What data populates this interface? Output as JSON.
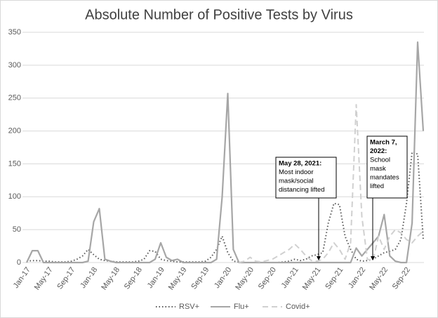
{
  "chart_data": {
    "type": "line",
    "title": "Absolute Number of Positive Tests by Virus",
    "categories": [
      "Jan-17",
      null,
      null,
      null,
      "May-17",
      null,
      null,
      null,
      "Sep-17",
      null,
      null,
      null,
      "Jan-18",
      null,
      null,
      null,
      "May-18",
      null,
      null,
      null,
      "Sep-18",
      null,
      null,
      null,
      "Jan-19",
      null,
      null,
      null,
      "May-19",
      null,
      null,
      null,
      "Sep-19",
      null,
      null,
      null,
      "Jan-20",
      null,
      null,
      null,
      "May-20",
      null,
      null,
      null,
      "Sep-20",
      null,
      null,
      null,
      "Jan-21",
      null,
      null,
      null,
      "May-21",
      null,
      null,
      null,
      "Sep-21",
      null,
      null,
      null,
      "Jan-22",
      null,
      null,
      null,
      "May-22",
      null,
      null,
      null,
      "Sep-22",
      null,
      null,
      null
    ],
    "series": [
      {
        "name": "RSV+",
        "color": "#595959",
        "dash": "dotted",
        "values": [
          2,
          3,
          3,
          2,
          2,
          1,
          1,
          1,
          2,
          5,
          10,
          20,
          12,
          5,
          3,
          2,
          1,
          1,
          1,
          1,
          2,
          5,
          18,
          17,
          5,
          3,
          2,
          1,
          1,
          1,
          1,
          1,
          2,
          8,
          20,
          40,
          15,
          2,
          1,
          0,
          0,
          0,
          0,
          0,
          0,
          0,
          1,
          2,
          5,
          3,
          5,
          10,
          12,
          15,
          60,
          90,
          88,
          40,
          20,
          5,
          2,
          3,
          5,
          10,
          15,
          17,
          20,
          35,
          90,
          168,
          165,
          35
        ]
      },
      {
        "name": "Flu+",
        "color": "#a6a6a6",
        "dash": "solid",
        "values": [
          0,
          18,
          18,
          0,
          0,
          0,
          0,
          0,
          0,
          0,
          0,
          2,
          62,
          82,
          5,
          2,
          0,
          0,
          0,
          0,
          0,
          0,
          0,
          5,
          30,
          8,
          3,
          5,
          0,
          0,
          0,
          0,
          0,
          0,
          5,
          100,
          257,
          20,
          0,
          0,
          0,
          0,
          0,
          0,
          0,
          0,
          0,
          0,
          0,
          0,
          0,
          0,
          0,
          0,
          0,
          0,
          0,
          0,
          0,
          22,
          10,
          20,
          30,
          40,
          73,
          10,
          2,
          0,
          0,
          60,
          335,
          200
        ]
      },
      {
        "name": "Covid+",
        "color": "#d0d0d0",
        "dash": "dashed",
        "values": [
          null,
          null,
          null,
          null,
          null,
          null,
          null,
          null,
          null,
          null,
          null,
          null,
          null,
          null,
          null,
          null,
          null,
          null,
          null,
          null,
          null,
          null,
          null,
          null,
          null,
          null,
          null,
          null,
          null,
          null,
          null,
          null,
          null,
          null,
          null,
          null,
          null,
          null,
          0,
          2,
          8,
          2,
          1,
          3,
          5,
          10,
          15,
          20,
          28,
          20,
          10,
          3,
          2,
          5,
          15,
          30,
          20,
          5,
          30,
          240,
          70,
          5,
          3,
          40,
          20,
          40,
          50,
          45,
          35,
          30,
          40,
          48
        ]
      }
    ],
    "ylim": [
      0,
      350
    ],
    "yticks": [
      0,
      50,
      100,
      150,
      200,
      250,
      300,
      350
    ],
    "grid": true,
    "legend": "bottom",
    "annotations": [
      {
        "heading": [
          "May 28, 2021:"
        ],
        "text": [
          "Most indoor",
          "mask/social",
          "distancing lifted"
        ]
      },
      {
        "heading": [
          "March 7,",
          "2022:"
        ],
        "text": [
          "School",
          "mask",
          "mandates",
          "lifted"
        ]
      }
    ]
  }
}
